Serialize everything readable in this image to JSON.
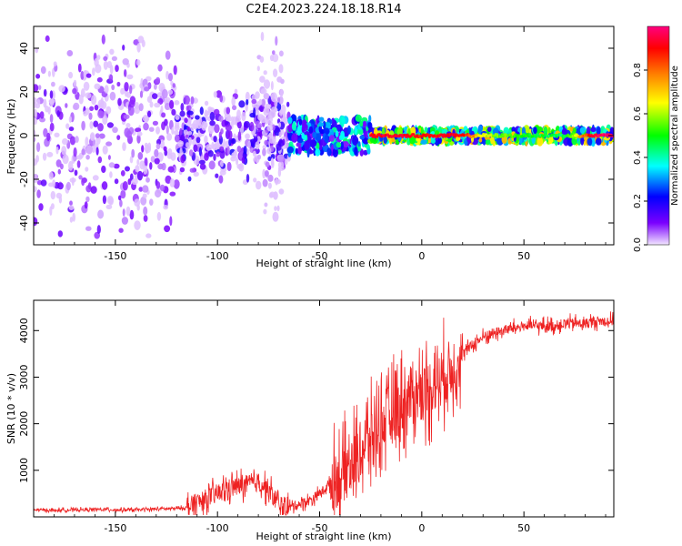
{
  "title": "C2E4.2023.224.18.18.R14",
  "chart_data": [
    {
      "type": "heatmap",
      "xlabel": "Height of straight line (km)",
      "ylabel": "Frequency (Hz)",
      "xlim": [
        -190,
        94
      ],
      "ylim": [
        -50,
        50
      ],
      "xticks": [
        -150,
        -100,
        -50,
        0,
        50
      ],
      "yticks": [
        -40,
        -20,
        0,
        20,
        40
      ],
      "colorbar": {
        "label": "Normalized spectral amplitude",
        "range": [
          0,
          1
        ],
        "ticks": [
          0.0,
          0.2,
          0.4,
          0.6,
          0.8
        ],
        "colors": [
          "#f2e6ff",
          "#7a00ff",
          "#0000ff",
          "#00ffff",
          "#00ff00",
          "#ffff00",
          "#ff8000",
          "#ff0000",
          "#ff0080"
        ]
      },
      "regions": [
        {
          "x": [
            -190,
            -120
          ],
          "freq_spread": [
            -50,
            50
          ],
          "amplitude": 0.12
        },
        {
          "x": [
            -120,
            -65
          ],
          "freq_spread": [
            -22,
            22
          ],
          "amplitude": 0.18
        },
        {
          "x": [
            -80,
            -68
          ],
          "freq_spread": [
            -50,
            50
          ],
          "amplitude": 0.05
        },
        {
          "x": [
            -65,
            -25
          ],
          "freq_spread": [
            -8,
            8
          ],
          "amplitude": 0.35
        },
        {
          "x": [
            -25,
            94
          ],
          "freq_spread": [
            -3,
            3
          ],
          "amplitude": 0.55
        }
      ],
      "ridge": [
        {
          "x": -20,
          "amp": 0.9
        },
        {
          "x": -10,
          "amp": 0.92
        },
        {
          "x": 0,
          "amp": 0.85
        },
        {
          "x": 10,
          "amp": 0.9
        },
        {
          "x": 20,
          "amp": 0.88
        },
        {
          "x": 30,
          "amp": 0.6
        },
        {
          "x": 50,
          "amp": 0.5
        },
        {
          "x": 70,
          "amp": 0.45
        },
        {
          "x": 85,
          "amp": 0.95
        },
        {
          "x": 94,
          "amp": 0.98
        }
      ]
    },
    {
      "type": "line",
      "xlabel": "Height of straight line (km)",
      "ylabel": "SNR (10 * v/v)",
      "xlim": [
        -190,
        94
      ],
      "ylim": [
        0,
        4650
      ],
      "xticks": [
        -150,
        -100,
        -50,
        0,
        50
      ],
      "yticks": [
        1000,
        2000,
        3000,
        4000
      ],
      "color": "#ee2222",
      "series": [
        {
          "x": [
            -190,
            -180,
            -170,
            -160,
            -150,
            -140,
            -130,
            -120,
            -115,
            -110,
            -105,
            -100,
            -95,
            -90,
            -85,
            -80,
            -75,
            -70,
            -65,
            -60,
            -55,
            -50,
            -45,
            -40,
            -35,
            -30,
            -25,
            -20,
            -15,
            -10,
            -5,
            0,
            5,
            10,
            15,
            20,
            25,
            30,
            35,
            40,
            45,
            50,
            55,
            60,
            65,
            70,
            75,
            80,
            85,
            90,
            94
          ],
          "y": [
            150,
            140,
            150,
            160,
            150,
            150,
            170,
            180,
            200,
            300,
            400,
            500,
            600,
            650,
            700,
            750,
            600,
            250,
            200,
            280,
            350,
            500,
            700,
            900,
            1100,
            1400,
            1700,
            2000,
            2200,
            2400,
            2600,
            2700,
            2800,
            3000,
            3200,
            3500,
            3700,
            3850,
            3950,
            4000,
            4050,
            4100,
            4100,
            4100,
            4100,
            4150,
            4150,
            4150,
            4200,
            4200,
            4200
          ]
        }
      ]
    }
  ]
}
